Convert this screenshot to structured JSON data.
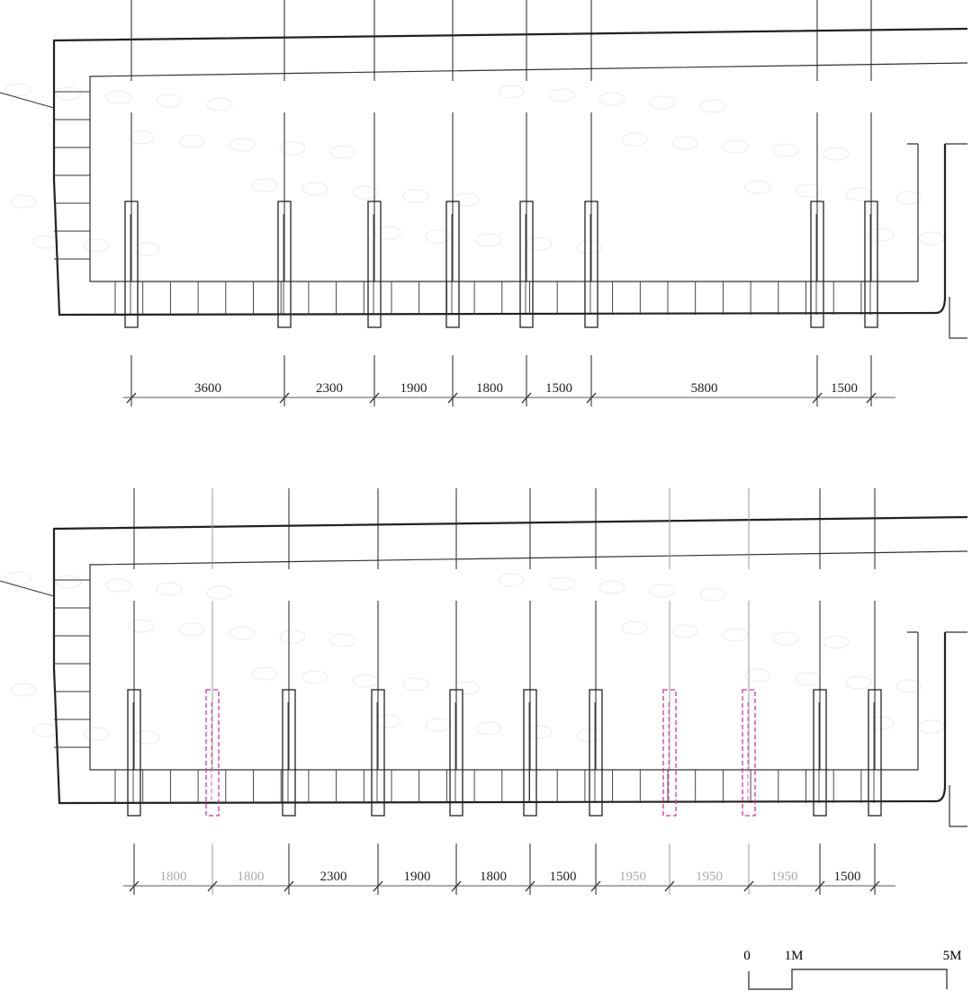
{
  "top_plan": {
    "dimensions": [
      "3600",
      "2300",
      "1900",
      "1800",
      "1500",
      "5800",
      "1500"
    ]
  },
  "bottom_plan": {
    "dimensions": [
      "1800",
      "1800",
      "2300",
      "1900",
      "1800",
      "1500",
      "1950",
      "1950",
      "1950",
      "1500"
    ]
  },
  "scale_bar": {
    "labels": [
      "0",
      "1M",
      "5M"
    ]
  }
}
